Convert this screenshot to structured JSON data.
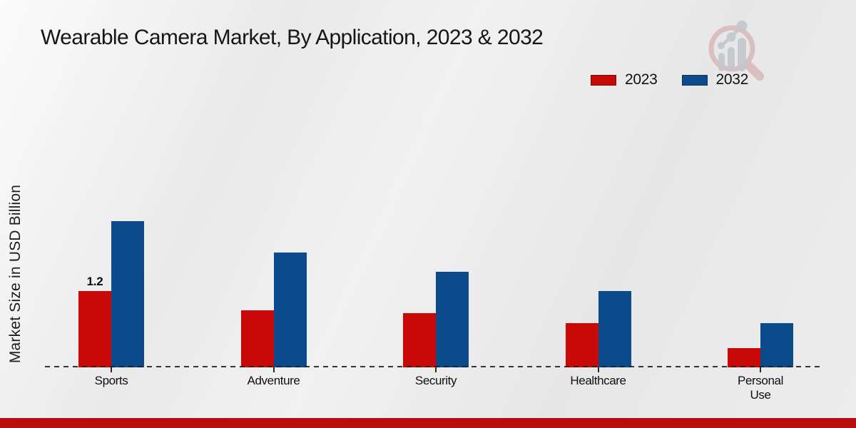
{
  "title": "Wearable Camera Market, By Application, 2023 & 2032",
  "ylabel": "Market Size in USD Billion",
  "legend": {
    "items": [
      {
        "label": "2023",
        "color": "#c90808"
      },
      {
        "label": "2032",
        "color": "#0b4b8c"
      }
    ]
  },
  "chart_data": {
    "type": "bar",
    "categories": [
      "Sports",
      "Adventure",
      "Security",
      "Healthcare",
      "Personal Use"
    ],
    "series": [
      {
        "name": "2023",
        "color": "#c90808",
        "values": [
          1.2,
          0.9,
          0.85,
          0.7,
          0.3
        ]
      },
      {
        "name": "2032",
        "color": "#0b4b8c",
        "values": [
          2.3,
          1.8,
          1.5,
          1.2,
          0.7
        ]
      }
    ],
    "title": "Wearable Camera Market, By Application, 2023 & 2032",
    "xlabel": "",
    "ylabel": "Market Size in USD Billion",
    "ylim": [
      0,
      2.6
    ],
    "grid": false,
    "legend_position": "top-right",
    "bar_labels": [
      {
        "series": "2023",
        "category": "Sports",
        "text": "1.2"
      }
    ]
  },
  "icons": {
    "watermark": "chart-magnifier-logo"
  },
  "colors": {
    "series_2023": "#c90808",
    "series_2032": "#0b4b8c",
    "footer_bar": "#b90c0c",
    "axis": "#1d1d1d"
  }
}
